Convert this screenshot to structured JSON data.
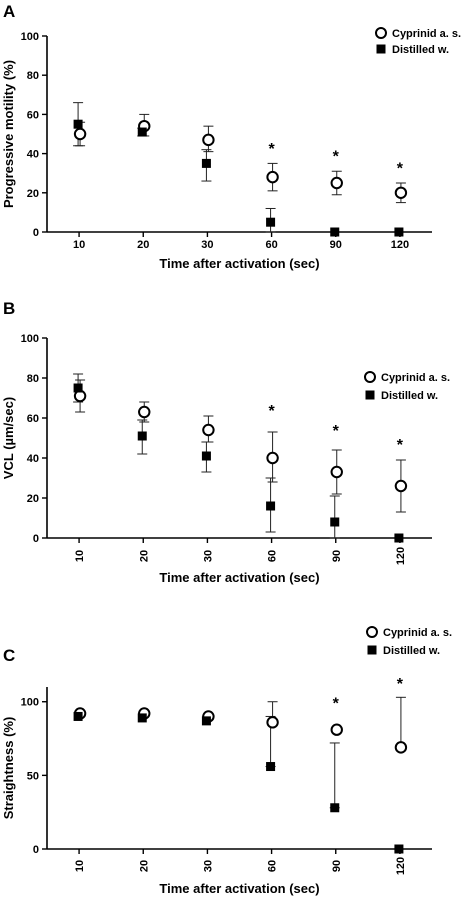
{
  "chart_data": [
    {
      "type": "scatter",
      "panel": "A",
      "xlabel": "Time after activation (sec)",
      "ylabel": "Progressive motility (%)",
      "categories": [
        "10",
        "20",
        "30",
        "60",
        "90",
        "120"
      ],
      "ylim": [
        0,
        100
      ],
      "yticks": [
        "0",
        "20",
        "40",
        "60",
        "80",
        "100"
      ],
      "grid": false,
      "legend_position": "top-right",
      "series": [
        {
          "name": "Cyprinid a. s.",
          "marker": "open-circle",
          "values": [
            50,
            54,
            47,
            28,
            25,
            20
          ],
          "err_low": [
            44,
            49,
            41,
            21,
            19,
            15
          ],
          "err_high": [
            56,
            60,
            54,
            35,
            31,
            25
          ]
        },
        {
          "name": "Distilled w.",
          "marker": "filled-square",
          "values": [
            55,
            51,
            35,
            5,
            0,
            0
          ],
          "err_low": [
            44,
            49,
            26,
            0,
            0,
            0
          ],
          "err_high": [
            66,
            53,
            42,
            12,
            0,
            0
          ]
        }
      ],
      "annotations": [
        {
          "category": "60",
          "text": "*",
          "y": 44
        },
        {
          "category": "90",
          "text": "*",
          "y": 40
        },
        {
          "category": "120",
          "text": "*",
          "y": 34
        }
      ]
    },
    {
      "type": "scatter",
      "panel": "B",
      "xlabel": "Time after activation (sec)",
      "ylabel": "VCL (µm/sec)",
      "categories": [
        "10",
        "20",
        "30",
        "60",
        "90",
        "120"
      ],
      "ylim": [
        0,
        100
      ],
      "yticks": [
        "0",
        "20",
        "40",
        "60",
        "80",
        "100"
      ],
      "grid": false,
      "legend_position": "top-right",
      "series": [
        {
          "name": "Cyprinid a. s.",
          "marker": "open-circle",
          "values": [
            71,
            63,
            54,
            40,
            33,
            26
          ],
          "err_low": [
            63,
            58,
            48,
            28,
            22,
            13
          ],
          "err_high": [
            79,
            68,
            61,
            53,
            44,
            39
          ]
        },
        {
          "name": "Distilled w.",
          "marker": "filled-square",
          "values": [
            75,
            51,
            41,
            16,
            8,
            0
          ],
          "err_low": [
            68,
            42,
            33,
            3,
            0,
            0
          ],
          "err_high": [
            82,
            59,
            48,
            30,
            21,
            0
          ]
        }
      ],
      "annotations": [
        {
          "category": "60",
          "text": "*",
          "y": 65
        },
        {
          "category": "90",
          "text": "*",
          "y": 55
        },
        {
          "category": "120",
          "text": "*",
          "y": 48
        }
      ]
    },
    {
      "type": "scatter",
      "panel": "C",
      "xlabel": "Time after activation (sec)",
      "ylabel": "Straightness (%)",
      "categories": [
        "10",
        "20",
        "30",
        "60",
        "90",
        "120"
      ],
      "ylim": [
        0,
        110
      ],
      "yticks": [
        "0",
        "50",
        "100"
      ],
      "grid": false,
      "legend_position": "top-right",
      "series": [
        {
          "name": "Cyprinid a. s.",
          "marker": "open-circle",
          "values": [
            92,
            92,
            90,
            86,
            81,
            69
          ],
          "err_low": [
            92,
            92,
            90,
            86,
            81,
            69
          ],
          "err_high": [
            92,
            92,
            90,
            100,
            81,
            103
          ]
        },
        {
          "name": "Distilled w.",
          "marker": "filled-square",
          "values": [
            90,
            89,
            87,
            56,
            28,
            0
          ],
          "err_low": [
            90,
            89,
            87,
            56,
            28,
            0
          ],
          "err_high": [
            90,
            89,
            87,
            90,
            72,
            0
          ]
        }
      ],
      "annotations": [
        {
          "category": "90",
          "text": "*",
          "y": 101
        },
        {
          "category": "120",
          "text": "*",
          "y": 114
        }
      ]
    }
  ]
}
